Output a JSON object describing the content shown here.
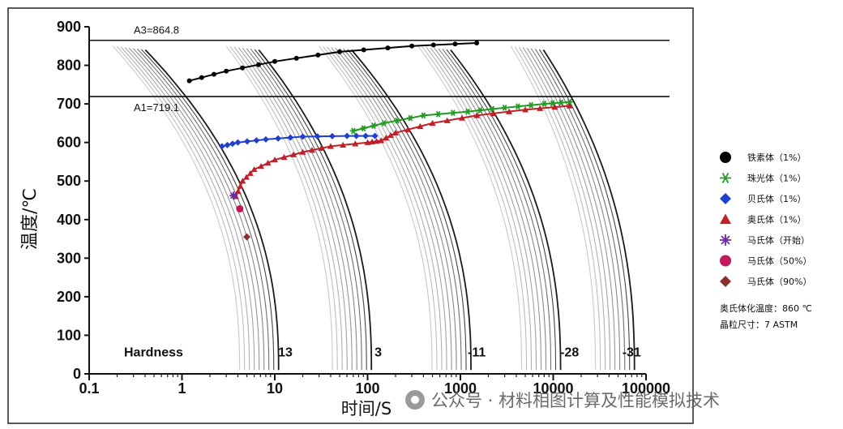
{
  "chart_data": {
    "type": "line",
    "title": "",
    "xlabel": "时间/S",
    "ylabel": "温度/℃",
    "x_scale": "log",
    "xlim": [
      0.1,
      100000
    ],
    "ylim": [
      0,
      900
    ],
    "x_ticks": [
      "0.1",
      "1",
      "10",
      "100",
      "1000",
      "10000",
      "100000"
    ],
    "y_ticks": [
      "0",
      "100",
      "200",
      "300",
      "400",
      "500",
      "600",
      "700",
      "800",
      "900"
    ],
    "reference_lines": [
      {
        "label": "A3=864.8",
        "y": 864.8
      },
      {
        "label": "A1=719.1",
        "y": 719.1
      }
    ],
    "hardness_label": "Hardness",
    "hardness": [
      {
        "x": 13,
        "label": "13"
      },
      {
        "x": 130,
        "label": "3"
      },
      {
        "x": 1500,
        "label": "-11"
      },
      {
        "x": 15000,
        "label": "-28"
      },
      {
        "x": 70000,
        "label": "-31"
      }
    ],
    "cooling_curve_groups": [
      {
        "start_x": 0.18,
        "end_x": 11,
        "count": 9
      },
      {
        "start_x": 3,
        "end_x": 110,
        "count": 9
      },
      {
        "start_x": 30,
        "end_x": 1300,
        "count": 9
      },
      {
        "start_x": 350,
        "end_x": 12000,
        "count": 9
      },
      {
        "start_x": 3500,
        "end_x": 75000,
        "count": 9
      }
    ],
    "series": [
      {
        "name": "铁素体（1%）",
        "color": "#000000",
        "marker": "circle",
        "points": [
          [
            1.2,
            760
          ],
          [
            3,
            785
          ],
          [
            10,
            810
          ],
          [
            50,
            835
          ],
          [
            300,
            850
          ],
          [
            1500,
            858
          ]
        ]
      },
      {
        "name": "珠光体（1%）",
        "color": "#229922",
        "marker": "star",
        "points": [
          [
            70,
            630
          ],
          [
            150,
            650
          ],
          [
            400,
            670
          ],
          [
            1200,
            680
          ],
          [
            3000,
            690
          ],
          [
            8000,
            700
          ],
          [
            15000,
            705
          ]
        ]
      },
      {
        "name": "贝氏体（1%）",
        "color": "#1f3fcf",
        "marker": "diamond",
        "points": [
          [
            2.7,
            590
          ],
          [
            4,
            600
          ],
          [
            8,
            608
          ],
          [
            20,
            615
          ],
          [
            60,
            617
          ],
          [
            120,
            617
          ]
        ]
      },
      {
        "name": "奥氏体（1%）",
        "color": "#c0202a",
        "marker": "triangle",
        "points": [
          [
            3.8,
            460
          ],
          [
            4.5,
            500
          ],
          [
            6,
            530
          ],
          [
            10,
            555
          ],
          [
            20,
            575
          ],
          [
            40,
            590
          ],
          [
            100,
            600
          ],
          [
            140,
            605
          ],
          [
            200,
            625
          ],
          [
            500,
            650
          ],
          [
            1500,
            670
          ],
          [
            5000,
            685
          ],
          [
            15000,
            695
          ]
        ]
      },
      {
        "name": "马氏体（开始）",
        "color": "#6a2aa0",
        "marker": "asterisk",
        "points": [
          [
            3.6,
            462
          ]
        ]
      },
      {
        "name": "马氏体（50%）",
        "color": "#c2185b",
        "marker": "circle",
        "points": [
          [
            4.2,
            428
          ]
        ]
      },
      {
        "name": "马氏体（90%）",
        "color": "#8b3030",
        "marker": "diamond",
        "points": [
          [
            5,
            355
          ]
        ]
      }
    ],
    "legend_position": "right",
    "notes": [
      "奥氏体化温度：860 ℃",
      "晶粒尺寸：7 ASTM"
    ]
  },
  "watermark": "公众号 · 材料相图计算及性能模拟技术"
}
